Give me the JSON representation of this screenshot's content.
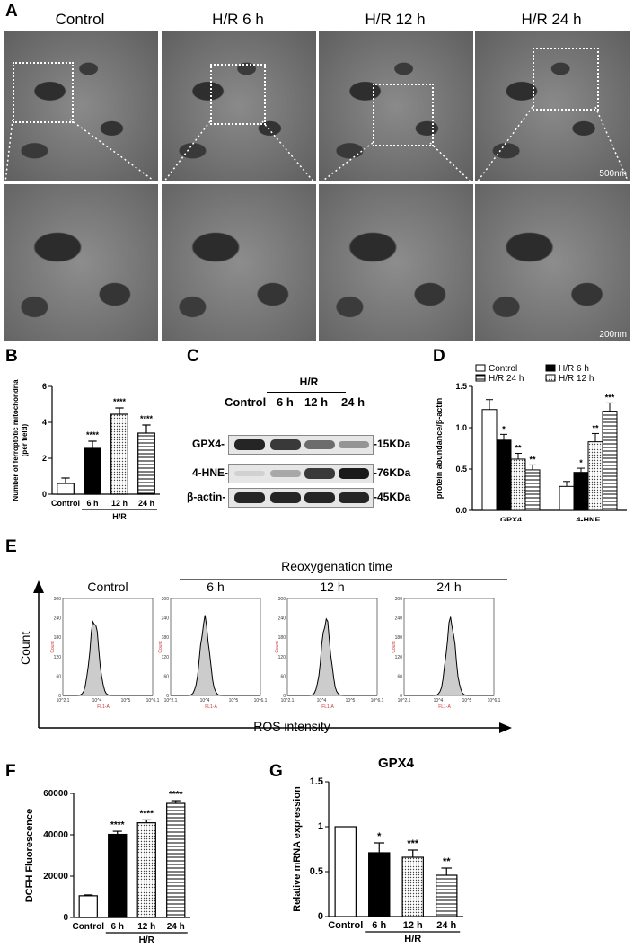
{
  "panels": {
    "A": {
      "letter": "A",
      "conditions": [
        "Control",
        "H/R 6 h",
        "H/R 12 h",
        "H/R 24 h"
      ],
      "scale_top": "500nm",
      "scale_bottom": "200nm"
    },
    "B": {
      "letter": "B"
    },
    "C": {
      "letter": "C",
      "header": "H/R",
      "lanes": [
        "Control",
        "6 h",
        "12 h",
        "24 h"
      ],
      "rows": [
        {
          "label": "GPX4-",
          "size": "-15KDa",
          "intensity": [
            0.95,
            0.85,
            0.6,
            0.4
          ]
        },
        {
          "label": "4-HNE-",
          "size": "-76KDa",
          "intensity": [
            0.1,
            0.3,
            0.85,
            1.0
          ]
        },
        {
          "label": "β-actin-",
          "size": "-45KDa",
          "intensity": [
            0.95,
            0.95,
            0.95,
            0.95
          ]
        }
      ]
    },
    "D": {
      "letter": "D"
    },
    "E": {
      "letter": "E",
      "header": "Reoxygenation time",
      "titles": [
        "Control",
        "6 h",
        "12 h",
        "24 h"
      ],
      "y_axis": "Count",
      "x_axis": "ROS intensity",
      "mini_y_label": "Count",
      "mini_x_label": "FL1-A",
      "mini_y_ticks": [
        "0",
        "60",
        "120",
        "180",
        "240",
        "300"
      ],
      "mini_x_ticks": [
        "10^2.1",
        "10^4",
        "10^5",
        "10^6.1"
      ]
    },
    "F": {
      "letter": "F"
    },
    "G": {
      "letter": "G"
    }
  },
  "chart_data": [
    {
      "id": "B",
      "type": "bar",
      "categories": [
        "Control",
        "6 h",
        "12 h",
        "24 h"
      ],
      "values": [
        0.6,
        2.55,
        4.45,
        3.4
      ],
      "errors": [
        0.3,
        0.4,
        0.35,
        0.45
      ],
      "sig": [
        "",
        "****",
        "****",
        "****"
      ],
      "fills": [
        "white",
        "black",
        "dots",
        "hlines"
      ],
      "ylabel": "Number of ferroptotic mitochondria\n(per field)",
      "ylim": [
        0,
        6
      ],
      "yticks": [
        0,
        2,
        4,
        6
      ],
      "group_label": "H/R"
    },
    {
      "id": "D",
      "type": "bar",
      "groups": [
        "GPX4",
        "4-HNE"
      ],
      "series": [
        {
          "name": "Control",
          "fill": "white",
          "values": [
            1.22,
            0.29
          ],
          "errors": [
            0.12,
            0.06
          ],
          "sig": [
            "",
            ""
          ]
        },
        {
          "name": "H/R 6 h",
          "fill": "black",
          "values": [
            0.85,
            0.46
          ],
          "errors": [
            0.07,
            0.05
          ],
          "sig": [
            "*",
            "*"
          ]
        },
        {
          "name": "H/R 12 h",
          "fill": "dots",
          "values": [
            0.62,
            0.83
          ],
          "errors": [
            0.07,
            0.1
          ],
          "sig": [
            "**",
            "**"
          ]
        },
        {
          "name": "H/R 24 h",
          "fill": "hlines",
          "values": [
            0.49,
            1.2
          ],
          "errors": [
            0.06,
            0.1
          ],
          "sig": [
            "**",
            "***"
          ]
        }
      ],
      "ylabel": "protein abundance/β-actin",
      "ylim": [
        0,
        1.5
      ],
      "yticks": [
        0.0,
        0.5,
        1.0,
        1.5
      ],
      "legend_order": [
        "Control",
        "H/R 6 h",
        "H/R 24 h",
        "H/R 12 h"
      ]
    },
    {
      "id": "F",
      "type": "bar",
      "categories": [
        "Control",
        "6 h",
        "12 h",
        "24 h"
      ],
      "values": [
        10500,
        40200,
        45800,
        55200
      ],
      "errors": [
        400,
        1500,
        1400,
        1300
      ],
      "sig": [
        "",
        "****",
        "****",
        "****"
      ],
      "fills": [
        "white",
        "black",
        "dots",
        "hlines"
      ],
      "ylabel": "DCFH  Fluorescence",
      "ylim": [
        0,
        60000
      ],
      "yticks": [
        0,
        20000,
        40000,
        60000
      ],
      "group_label": "H/R"
    },
    {
      "id": "G",
      "type": "bar",
      "title": "GPX4",
      "categories": [
        "Control",
        "6 h",
        "12 h",
        "24 h"
      ],
      "values": [
        1.0,
        0.71,
        0.66,
        0.46
      ],
      "errors": [
        0,
        0.11,
        0.08,
        0.08
      ],
      "sig": [
        "",
        "*",
        "***",
        "**"
      ],
      "fills": [
        "white",
        "black",
        "dots",
        "hlines"
      ],
      "ylabel": "Relative mRNA expression",
      "ylim": [
        0,
        1.5
      ],
      "yticks": [
        0.0,
        0.5,
        1.0,
        1.5
      ],
      "group_label": "H/R"
    }
  ]
}
